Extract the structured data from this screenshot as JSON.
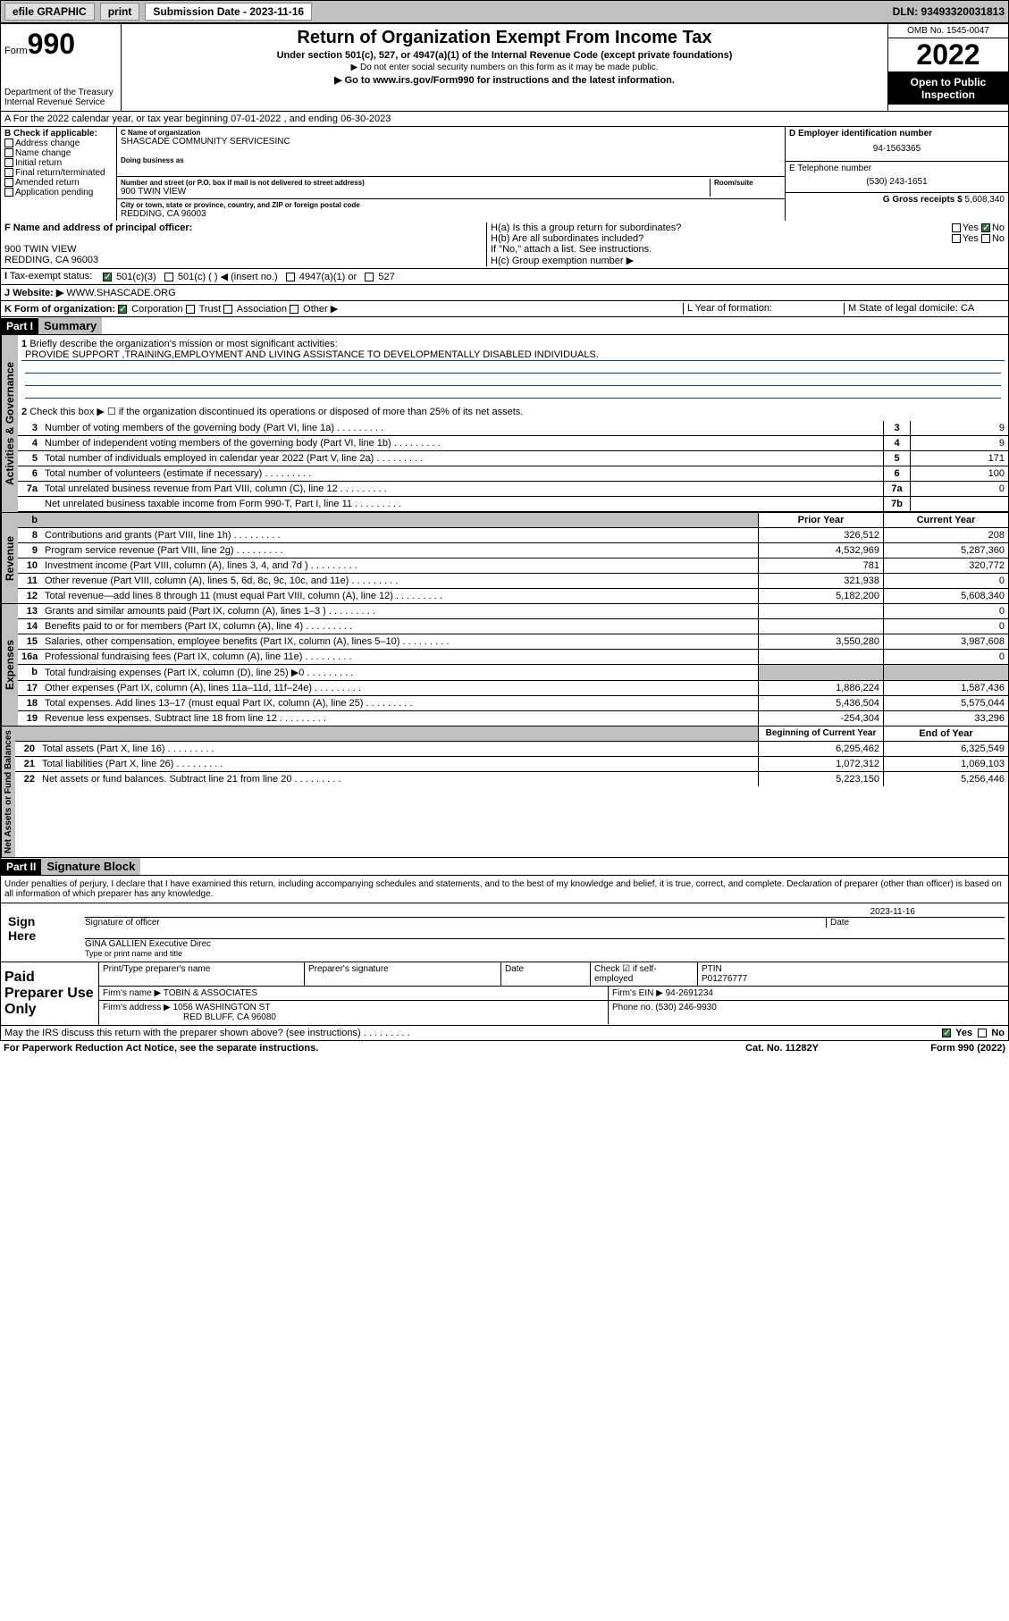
{
  "topbar": {
    "efile": "efile GRAPHIC",
    "print": "print",
    "subdate_lbl": "Submission Date - 2023-11-16",
    "dln": "DLN: 93493320031813"
  },
  "header": {
    "form": "Form",
    "num": "990",
    "dept": "Department of the Treasury Internal Revenue Service",
    "title": "Return of Organization Exempt From Income Tax",
    "sub1": "Under section 501(c), 527, or 4947(a)(1) of the Internal Revenue Code (except private foundations)",
    "sub2": "▶ Do not enter social security numbers on this form as it may be made public.",
    "sub3": "▶ Go to www.irs.gov/Form990 for instructions and the latest information.",
    "omb": "OMB No. 1545-0047",
    "year": "2022",
    "open": "Open to Public Inspection"
  },
  "rowA": "A For the 2022 calendar year, or tax year beginning 07-01-2022   , and ending 06-30-2023",
  "checkB": {
    "lbl": "B Check if applicable:",
    "opts": [
      "Address change",
      "Name change",
      "Initial return",
      "Final return/terminated",
      "Amended return",
      "Application pending"
    ]
  },
  "org": {
    "name_lbl": "C Name of organization",
    "name": "SHASCADE COMMUNITY SERVICESINC",
    "dba_lbl": "Doing business as",
    "addr_lbl": "Number and street (or P.O. box if mail is not delivered to street address)",
    "room_lbl": "Room/suite",
    "addr": "900 TWIN VIEW",
    "city_lbl": "City or town, state or province, country, and ZIP or foreign postal code",
    "city": "REDDING, CA  96003"
  },
  "colD": {
    "ein_lbl": "D Employer identification number",
    "ein": "94-1563365",
    "phone_lbl": "E Telephone number",
    "phone": "(530) 243-1651",
    "gross_lbl": "G Gross receipts $",
    "gross": "5,608,340"
  },
  "rowF": {
    "lbl": "F Name and address of principal officer:",
    "addr1": "900 TWIN VIEW",
    "addr2": "REDDING, CA  96003"
  },
  "rowH": {
    "a": "H(a)  Is this a group return for subordinates?",
    "b": "H(b)  Are all subordinates included?",
    "b2": "If \"No,\" attach a list. See instructions.",
    "c": "H(c)  Group exemption number ▶",
    "yes": "Yes",
    "no": "No"
  },
  "rowI": {
    "lbl": "Tax-exempt status:",
    "o1": "501(c)(3)",
    "o2": "501(c) (  ) ◀ (insert no.)",
    "o3": "4947(a)(1) or",
    "o4": "527"
  },
  "rowJ": {
    "lbl": "Website: ▶",
    "val": "WWW.SHASCADE.ORG"
  },
  "rowK": {
    "lbl": "K Form of organization:",
    "opts": [
      "Corporation",
      "Trust",
      "Association",
      "Other ▶"
    ],
    "L": "L Year of formation:",
    "M": "M State of legal domicile: CA"
  },
  "part1": {
    "hdr": "Part I",
    "title": "Summary"
  },
  "activities": {
    "l1": "Briefly describe the organization's mission or most significant activities:",
    "mission": "PROVIDE SUPPORT ,TRAINING,EMPLOYMENT AND LIVING ASSISTANCE TO DEVELOPMENTALLY DISABLED INDIVIDUALS.",
    "l2": "Check this box ▶ ☐  if the organization discontinued its operations or disposed of more than 25% of its net assets.",
    "lines": [
      {
        "n": "3",
        "t": "Number of voting members of the governing body (Part VI, line 1a)",
        "bn": "3",
        "bv": "9"
      },
      {
        "n": "4",
        "t": "Number of independent voting members of the governing body (Part VI, line 1b)",
        "bn": "4",
        "bv": "9"
      },
      {
        "n": "5",
        "t": "Total number of individuals employed in calendar year 2022 (Part V, line 2a)",
        "bn": "5",
        "bv": "171"
      },
      {
        "n": "6",
        "t": "Total number of volunteers (estimate if necessary)",
        "bn": "6",
        "bv": "100"
      },
      {
        "n": "7a",
        "t": "Total unrelated business revenue from Part VIII, column (C), line 12",
        "bn": "7a",
        "bv": "0"
      },
      {
        "n": "",
        "t": "Net unrelated business taxable income from Form 990-T, Part I, line 11",
        "bn": "7b",
        "bv": ""
      }
    ]
  },
  "colHdrs": {
    "prior": "Prior Year",
    "curr": "Current Year"
  },
  "revenue": [
    {
      "n": "8",
      "t": "Contributions and grants (Part VIII, line 1h)",
      "p": "326,512",
      "c": "208"
    },
    {
      "n": "9",
      "t": "Program service revenue (Part VIII, line 2g)",
      "p": "4,532,969",
      "c": "5,287,360"
    },
    {
      "n": "10",
      "t": "Investment income (Part VIII, column (A), lines 3, 4, and 7d )",
      "p": "781",
      "c": "320,772"
    },
    {
      "n": "11",
      "t": "Other revenue (Part VIII, column (A), lines 5, 6d, 8c, 9c, 10c, and 11e)",
      "p": "321,938",
      "c": "0"
    },
    {
      "n": "12",
      "t": "Total revenue—add lines 8 through 11 (must equal Part VIII, column (A), line 12)",
      "p": "5,182,200",
      "c": "5,608,340"
    }
  ],
  "expenses": [
    {
      "n": "13",
      "t": "Grants and similar amounts paid (Part IX, column (A), lines 1–3 )",
      "p": "",
      "c": "0"
    },
    {
      "n": "14",
      "t": "Benefits paid to or for members (Part IX, column (A), line 4)",
      "p": "",
      "c": "0"
    },
    {
      "n": "15",
      "t": "Salaries, other compensation, employee benefits (Part IX, column (A), lines 5–10)",
      "p": "3,550,280",
      "c": "3,987,608"
    },
    {
      "n": "16a",
      "t": "Professional fundraising fees (Part IX, column (A), line 11e)",
      "p": "",
      "c": "0"
    },
    {
      "n": "b",
      "t": "Total fundraising expenses (Part IX, column (D), line 25) ▶0",
      "p": "grey",
      "c": "grey"
    },
    {
      "n": "17",
      "t": "Other expenses (Part IX, column (A), lines 11a–11d, 11f–24e)",
      "p": "1,886,224",
      "c": "1,587,436"
    },
    {
      "n": "18",
      "t": "Total expenses. Add lines 13–17 (must equal Part IX, column (A), line 25)",
      "p": "5,436,504",
      "c": "5,575,044"
    },
    {
      "n": "19",
      "t": "Revenue less expenses. Subtract line 18 from line 12",
      "p": "-254,304",
      "c": "33,296"
    }
  ],
  "balHdrs": {
    "beg": "Beginning of Current Year",
    "end": "End of Year"
  },
  "balances": [
    {
      "n": "20",
      "t": "Total assets (Part X, line 16)",
      "p": "6,295,462",
      "c": "6,325,549"
    },
    {
      "n": "21",
      "t": "Total liabilities (Part X, line 26)",
      "p": "1,072,312",
      "c": "1,069,103"
    },
    {
      "n": "22",
      "t": "Net assets or fund balances. Subtract line 21 from line 20",
      "p": "5,223,150",
      "c": "5,256,446"
    }
  ],
  "part2": {
    "hdr": "Part II",
    "title": "Signature Block"
  },
  "sig": {
    "decl": "Under penalties of perjury, I declare that I have examined this return, including accompanying schedules and statements, and to the best of my knowledge and belief, it is true, correct, and complete. Declaration of preparer (other than officer) is based on all information of which preparer has any knowledge.",
    "here": "Sign Here",
    "sigoff": "Signature of officer",
    "date": "Date",
    "sigdate": "2023-11-16",
    "name": "GINA GALLIEN  Executive Direc",
    "name_lbl": "Type or print name and title"
  },
  "paid": {
    "left": "Paid Preparer Use Only",
    "h1": "Print/Type preparer's name",
    "h2": "Preparer's signature",
    "h3": "Date",
    "h4": "Check ☑ if self-employed",
    "h5": "PTIN",
    "ptin": "P01276777",
    "firm_lbl": "Firm's name    ▶",
    "firm": "TOBIN & ASSOCIATES",
    "ein_lbl": "Firm's EIN ▶",
    "ein": "94-2691234",
    "addr_lbl": "Firm's address ▶",
    "addr1": "1056 WASHINGTON ST",
    "addr2": "RED BLUFF, CA  96080",
    "phone_lbl": "Phone no.",
    "phone": "(530) 246-9930"
  },
  "discuss": "May the IRS discuss this return with the preparer shown above? (see instructions)",
  "footer": {
    "l": "For Paperwork Reduction Act Notice, see the separate instructions.",
    "c": "Cat. No. 11282Y",
    "r": "Form 990 (2022)"
  },
  "tabs": {
    "act": "Activities & Governance",
    "rev": "Revenue",
    "exp": "Expenses",
    "bal": "Net Assets or Fund Balances"
  }
}
